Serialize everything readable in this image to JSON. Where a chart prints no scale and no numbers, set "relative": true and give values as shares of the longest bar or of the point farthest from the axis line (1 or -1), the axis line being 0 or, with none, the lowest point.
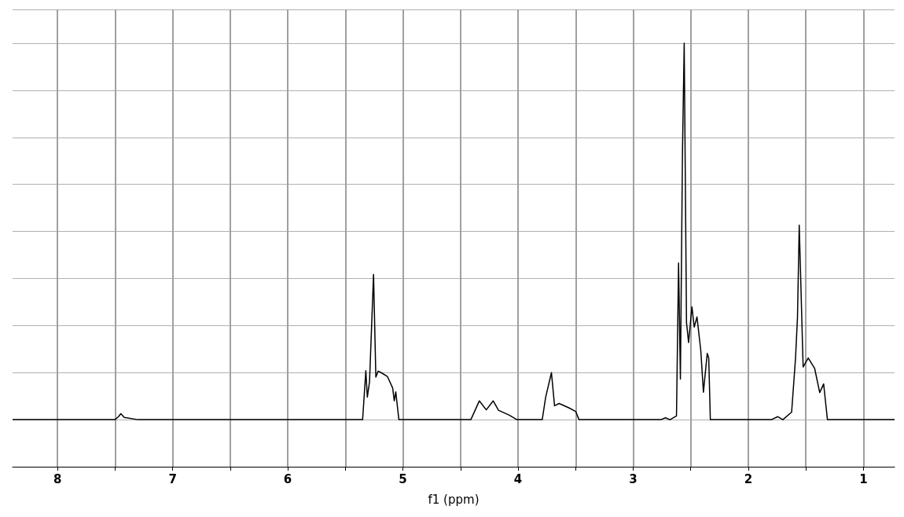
{
  "chart_data": {
    "type": "line",
    "relative": true,
    "xlabel": "f1 (ppm)",
    "xlim": [
      8.39,
      0.73
    ],
    "xticks": [
      8,
      {
        "value": 7.5,
        "label": null
      },
      7,
      {
        "value": 6.5,
        "label": null
      },
      6,
      {
        "value": 5.5,
        "label": null
      },
      5,
      {
        "value": 4.5,
        "label": null
      },
      4,
      {
        "value": 3.5,
        "label": null
      },
      3,
      {
        "value": 2.5,
        "label": null
      },
      2,
      {
        "value": 1.5,
        "label": null
      },
      1
    ],
    "grid": true,
    "marker": "none",
    "line_style": "solid",
    "series": [
      {
        "color": "#000000",
        "x": [
          8.39,
          7.5,
          7.47,
          7.45,
          7.42,
          7.3,
          5.35,
          5.322,
          5.309,
          5.29,
          5.255,
          5.235,
          5.215,
          5.189,
          5.135,
          5.089,
          5.075,
          5.062,
          5.035,
          5.0,
          4.41,
          4.336,
          4.276,
          4.216,
          4.17,
          4.076,
          4.01,
          3.79,
          3.76,
          3.71,
          3.683,
          3.643,
          3.556,
          3.5,
          3.47,
          2.76,
          2.72,
          2.68,
          2.624,
          2.606,
          2.59,
          2.572,
          2.557,
          2.537,
          2.519,
          2.49,
          2.47,
          2.446,
          2.413,
          2.39,
          2.357,
          2.344,
          2.33,
          1.8,
          1.744,
          1.7,
          1.624,
          1.59,
          1.573,
          1.558,
          1.524,
          1.48,
          1.424,
          1.38,
          1.346,
          1.313,
          0.73
        ],
        "values": [
          0,
          0,
          0.008,
          0.016,
          0.006,
          0,
          0,
          0.13,
          0.06,
          0.1,
          0.386,
          0.113,
          0.129,
          0.125,
          0.115,
          0.084,
          0.05,
          0.074,
          0,
          0,
          0,
          0.05,
          0.026,
          0.05,
          0.025,
          0.012,
          0,
          0,
          0.06,
          0.125,
          0.037,
          0.043,
          0.031,
          0.022,
          0,
          0,
          0.005,
          0,
          0.01,
          0.416,
          0.108,
          0.71,
          1,
          0.258,
          0.205,
          0.3,
          0.246,
          0.273,
          0.184,
          0.073,
          0.176,
          0.164,
          0,
          0,
          0.008,
          0,
          0.02,
          0.164,
          0.273,
          0.517,
          0.14,
          0.164,
          0.136,
          0.072,
          0.095,
          0,
          0
        ]
      }
    ]
  }
}
